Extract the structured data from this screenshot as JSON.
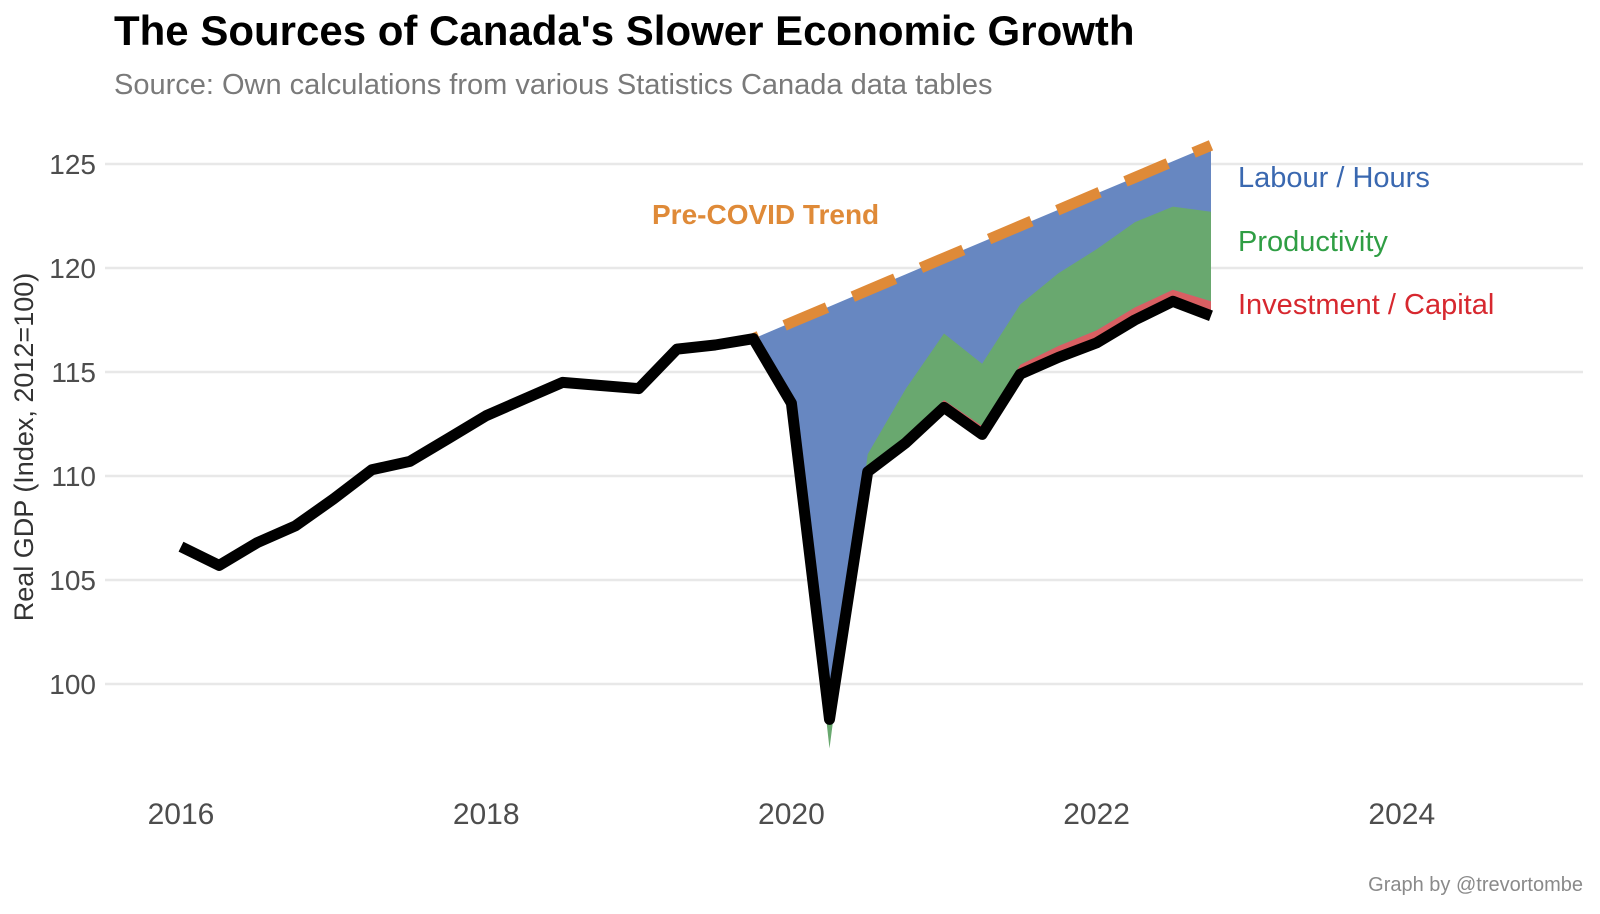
{
  "title": "The Sources of Canada's Slower Economic Growth",
  "subtitle": "Source: Own calculations from various Statistics Canada data tables",
  "credit": "Graph by @trevortombe",
  "y_axis_title": "Real GDP (Index, 2012=100)",
  "trend_label": "Pre-COVID Trend",
  "legend": [
    {
      "label": "Labour / Hours",
      "color": "#3A68B0"
    },
    {
      "label": "Productivity",
      "color": "#2F9E44"
    },
    {
      "label": "Investment / Capital",
      "color": "#D7282F"
    }
  ],
  "colors": {
    "labour_area": "#6787C1",
    "productivity_area": "#69A86F",
    "investment_area": "#D95F62",
    "trend": "#DF8A38",
    "gdp_line": "#000000",
    "gridline": "#E8E8E8",
    "axis_text": "#4D4D4D",
    "y_axis_title_text": "#333333",
    "subtitle_text": "#7A7A7A",
    "credit_text": "#8A8A8A",
    "title_text": "#000000",
    "background": "#FFFFFF"
  },
  "chart_data": {
    "type": "area",
    "title": "The Sources of Canada's Slower Economic Growth",
    "subtitle": "Source: Own calculations from various Statistics Canada data tables",
    "xlabel": "",
    "ylabel": "Real GDP (Index, 2012=100)",
    "x_ticks": [
      2016,
      2018,
      2020,
      2022,
      2024
    ],
    "y_ticks": [
      100,
      105,
      110,
      115,
      120,
      125
    ],
    "xlim": [
      2015.5,
      2025.1
    ],
    "ylim": [
      96.5,
      126.6
    ],
    "grid": "horizontal-only",
    "legend_position": "right-outside",
    "annotations": [
      "Pre-COVID Trend"
    ],
    "series_x": [
      2016.0,
      2016.25,
      2016.5,
      2016.75,
      2017.0,
      2017.25,
      2017.5,
      2017.75,
      2018.0,
      2018.25,
      2018.5,
      2018.75,
      2019.0,
      2019.25,
      2019.5,
      2019.75,
      2020.0,
      2020.25,
      2020.5,
      2020.75,
      2021.0,
      2021.25,
      2021.5,
      2021.75,
      2022.0,
      2022.25,
      2022.5,
      2022.75
    ],
    "actual_gdp": [
      106.6,
      105.7,
      106.8,
      107.6,
      108.9,
      110.3,
      110.7,
      111.8,
      112.9,
      113.7,
      114.5,
      114.35,
      114.2,
      116.1,
      116.3,
      116.6,
      113.5,
      98.3,
      110.2,
      111.6,
      113.3,
      112.0,
      114.9,
      115.7,
      116.4,
      117.5,
      118.4,
      117.7
    ],
    "trend_x": [
      2019.75,
      2020.0,
      2020.25,
      2020.5,
      2020.75,
      2021.0,
      2021.25,
      2021.5,
      2021.75,
      2022.0,
      2022.25,
      2022.5,
      2022.75
    ],
    "pre_covid_trend": [
      116.6,
      117.38,
      118.15,
      118.93,
      119.7,
      120.48,
      121.25,
      122.03,
      122.8,
      123.58,
      124.35,
      125.13,
      125.9
    ],
    "contributions": {
      "note": "gap components stacked on actual_gdp up to pre_covid_trend",
      "x": [
        2019.75,
        2020.0,
        2020.25,
        2020.5,
        2020.75,
        2021.0,
        2021.25,
        2021.5,
        2021.75,
        2022.0,
        2022.25,
        2022.5,
        2022.75
      ],
      "investment_capital": [
        0,
        0.05,
        0.1,
        0.15,
        0.2,
        0.35,
        0.4,
        0.45,
        0.55,
        0.6,
        0.6,
        0.55,
        0.7
      ],
      "productivity": [
        0,
        -0.3,
        -1.5,
        0.7,
        2.4,
        3.2,
        3.0,
        2.9,
        3.5,
        3.9,
        4.1,
        4.0,
        4.3
      ],
      "labour_hours": [
        0,
        4.13,
        21.25,
        7.88,
        5.5,
        3.63,
        5.85,
        3.78,
        3.05,
        2.68,
        2.15,
        2.18,
        3.2
      ]
    }
  }
}
